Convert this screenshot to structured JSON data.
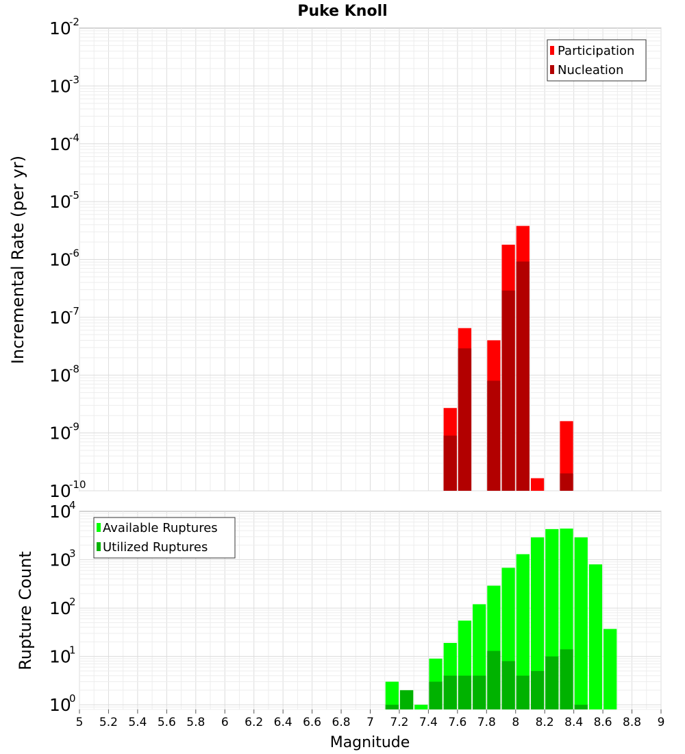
{
  "figure": {
    "title": "Puke Knoll",
    "xlabel": "Magnitude",
    "xticks": [
      "5",
      "5.2",
      "5.4",
      "5.6",
      "5.8",
      "6",
      "6.2",
      "6.4",
      "6.6",
      "6.8",
      "7",
      "7.2",
      "7.4",
      "7.6",
      "7.8",
      "8",
      "8.2",
      "8.4",
      "8.6",
      "8.8",
      "9"
    ]
  },
  "chart_data": [
    {
      "type": "bar",
      "title": "Puke Knoll",
      "xlabel": "",
      "ylabel": "Incremental Rate (per yr)",
      "yscale": "log",
      "xlim": [
        5,
        9
      ],
      "ylim": [
        1e-10,
        0.01
      ],
      "ytick_exponents": [
        "-2",
        "-3",
        "-4",
        "-5",
        "-6",
        "-7",
        "-8",
        "-9",
        "-10"
      ],
      "bar_width": 0.1,
      "legend_position": "top-right",
      "grid": true,
      "series": [
        {
          "name": "Participation",
          "color": "#ff0000",
          "x": [
            7.55,
            7.65,
            7.85,
            7.95,
            8.05,
            8.15,
            8.35
          ],
          "values": [
            2.7e-09,
            6.5e-08,
            4e-08,
            1.8e-06,
            3.8e-06,
            1.65e-10,
            1.6e-09
          ]
        },
        {
          "name": "Nucleation",
          "color": "#b20000",
          "x": [
            7.55,
            7.65,
            7.85,
            7.95,
            8.05,
            8.35
          ],
          "values": [
            9e-10,
            2.9e-08,
            8e-09,
            2.9e-07,
            9.2e-07,
            2e-10
          ]
        }
      ]
    },
    {
      "type": "bar",
      "xlabel": "Magnitude",
      "ylabel": "Rupture Count",
      "yscale": "log",
      "xlim": [
        5,
        9
      ],
      "ylim": [
        0.8,
        10000
      ],
      "ytick_exponents": [
        "4",
        "3",
        "2",
        "1",
        "0"
      ],
      "bar_width": 0.1,
      "legend_position": "top-left",
      "grid": true,
      "series": [
        {
          "name": "Available Ruptures",
          "color": "#00ff00",
          "x": [
            7.15,
            7.25,
            7.35,
            7.45,
            7.55,
            7.65,
            7.75,
            7.85,
            7.95,
            8.05,
            8.15,
            8.25,
            8.35,
            8.45,
            8.55,
            8.65
          ],
          "values": [
            3,
            2,
            1,
            9,
            19,
            55,
            120,
            290,
            680,
            1300,
            2900,
            4300,
            4400,
            2900,
            800,
            37
          ]
        },
        {
          "name": "Utilized Ruptures",
          "color": "#00b200",
          "x": [
            7.15,
            7.25,
            7.35,
            7.45,
            7.55,
            7.65,
            7.75,
            7.85,
            7.95,
            8.05,
            8.15,
            8.25,
            8.35,
            8.45
          ],
          "values": [
            1,
            2,
            0,
            3,
            4,
            4,
            4,
            13,
            8,
            4,
            5,
            10,
            14,
            1
          ]
        }
      ]
    }
  ]
}
